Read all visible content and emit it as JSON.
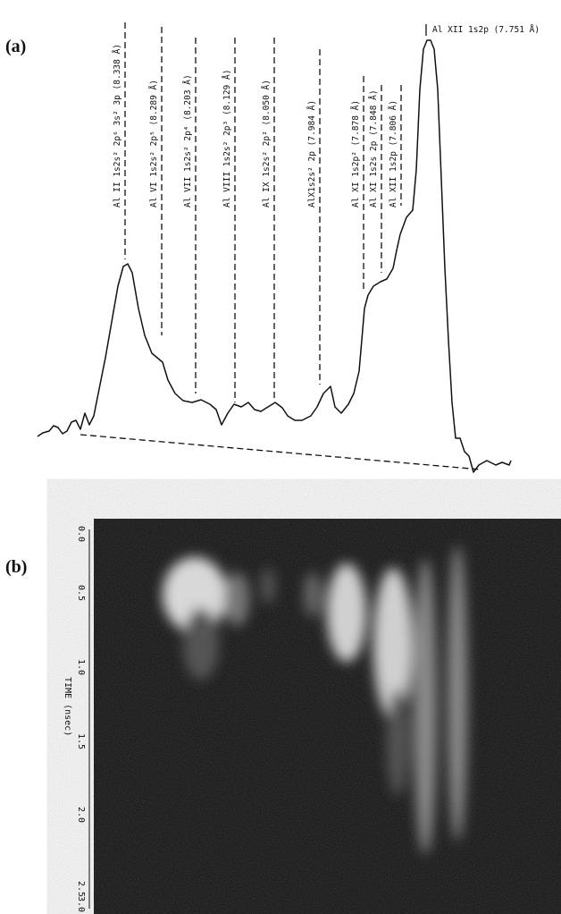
{
  "panels": [
    {
      "label": "(a)",
      "lines": [
        "Al II 1s2s² 2p⁶ 3s² 3p (8.338 Å)",
        "Al VI 1s2s² 2p⁵ (8.289 Å)",
        "Al VII 1s2s² 2p⁴ (8.203 Å)",
        "Al VIII 1s2s² 2p³ (8.129 Å)",
        "Al IX 1s2s² 2p² (8.050 Å)",
        "AlX1s2s² 2p (7.984 Å)",
        "Al XI 1s2p² (7.878 Å)",
        "Al XI 1s2s 2p (7.848 Å)",
        "Al XII 1s2p (7.806 Å)",
        "Al XII 1s2p (7.751 Å)"
      ]
    },
    {
      "label": "(b)",
      "axis_title": "TIME (nsec)",
      "ticks": [
        "0.0",
        "0.5",
        "1.0",
        "1.5",
        "2.0",
        "2.5",
        "3.0"
      ]
    }
  ]
}
